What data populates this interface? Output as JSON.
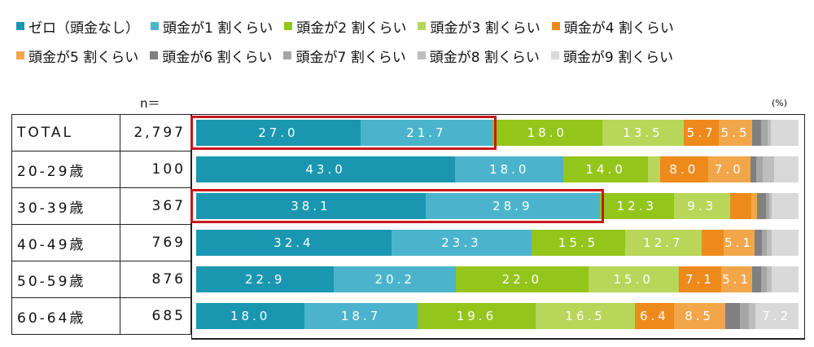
{
  "legend": [
    {
      "label": "ゼロ（頭金なし）",
      "color": "#1a96b0"
    },
    {
      "label": "頭金が1 割くらい",
      "color": "#4bb4cc"
    },
    {
      "label": "頭金が2 割くらい",
      "color": "#94c51b"
    },
    {
      "label": "頭金が3 割くらい",
      "color": "#b7d65a"
    },
    {
      "label": "頭金が4 割くらい",
      "color": "#ee8a1c"
    },
    {
      "label": "頭金が5 割くらい",
      "color": "#f2a64a"
    },
    {
      "label": "頭金が6 割くらい",
      "color": "#808080"
    },
    {
      "label": "頭金が7 割くらい",
      "color": "#a6a6a6"
    },
    {
      "label": "頭金が8 割くらい",
      "color": "#bdbdbd"
    },
    {
      "label": "頭金が9 割くらい",
      "color": "#d9d9d9"
    }
  ],
  "n_label": "n＝",
  "unit_label": "(%)",
  "rows": [
    {
      "label": "TOTAL",
      "n": "2,797"
    },
    {
      "label": "20-29歳",
      "n": "100"
    },
    {
      "label": "30-39歳",
      "n": "367"
    },
    {
      "label": "40-49歳",
      "n": "769"
    },
    {
      "label": "50-59歳",
      "n": "876"
    },
    {
      "label": "60-64歳",
      "n": "685"
    }
  ],
  "chart_data": {
    "type": "bar",
    "orientation": "horizontal-stacked-100",
    "categories": [
      "TOTAL",
      "20-29歳",
      "30-39歳",
      "40-49歳",
      "50-59歳",
      "60-64歳"
    ],
    "n": [
      2797,
      100,
      367,
      769,
      876,
      685
    ],
    "series": [
      {
        "name": "ゼロ（頭金なし）",
        "values": [
          27.0,
          43.0,
          38.1,
          32.4,
          22.9,
          18.0
        ]
      },
      {
        "name": "頭金が1 割くらい",
        "values": [
          21.7,
          18.0,
          28.9,
          23.3,
          20.2,
          18.7
        ]
      },
      {
        "name": "頭金が2 割くらい",
        "values": [
          18.0,
          14.0,
          12.3,
          15.5,
          22.0,
          19.6
        ]
      },
      {
        "name": "頭金が3 割くらい",
        "values": [
          13.5,
          2.0,
          9.3,
          12.7,
          15.0,
          16.5
        ]
      },
      {
        "name": "頭金が4 割くらい",
        "values": [
          5.7,
          8.0,
          3.5,
          3.7,
          7.1,
          6.4
        ]
      },
      {
        "name": "頭金が5 割くらい",
        "values": [
          5.5,
          7.0,
          1.0,
          5.1,
          5.1,
          8.5
        ]
      },
      {
        "name": "頭金が6 割くらい",
        "values": [
          1.5,
          1.0,
          1.5,
          1.2,
          1.5,
          2.5
        ]
      },
      {
        "name": "頭金が7 割くらい",
        "values": [
          1.0,
          1.0,
          0.5,
          0.8,
          1.0,
          1.5
        ]
      },
      {
        "name": "頭金が8 割くらい",
        "values": [
          0.6,
          2.0,
          0.4,
          0.8,
          0.8,
          1.0
        ]
      },
      {
        "name": "頭金が9 割くらい",
        "values": [
          4.5,
          4.0,
          4.5,
          4.5,
          4.4,
          7.2
        ]
      }
    ],
    "labels_shown": [
      [
        "27.0",
        "21.7",
        "18.0",
        "13.5",
        "5.7",
        "5.5",
        "",
        "",
        "",
        ""
      ],
      [
        "43.0",
        "18.0",
        "14.0",
        "",
        "8.0",
        "7.0",
        "",
        "",
        "",
        ""
      ],
      [
        "38.1",
        "28.9",
        "12.3",
        "9.3",
        "",
        "",
        "",
        "",
        "",
        ""
      ],
      [
        "32.4",
        "23.3",
        "15.5",
        "12.7",
        "",
        "5.1",
        "",
        "",
        "",
        ""
      ],
      [
        "22.9",
        "20.2",
        "22.0",
        "15.0",
        "7.1",
        "5.1",
        "",
        "",
        "",
        ""
      ],
      [
        "18.0",
        "18.7",
        "19.6",
        "16.5",
        "6.4",
        "8.5",
        "",
        "",
        "",
        "7.2"
      ]
    ],
    "highlighted": [
      {
        "row": "TOTAL",
        "series": [
          0,
          1
        ]
      },
      {
        "row": "30-39歳",
        "series": [
          0,
          1
        ]
      }
    ],
    "xlim": [
      0,
      100
    ],
    "unit": "%"
  }
}
